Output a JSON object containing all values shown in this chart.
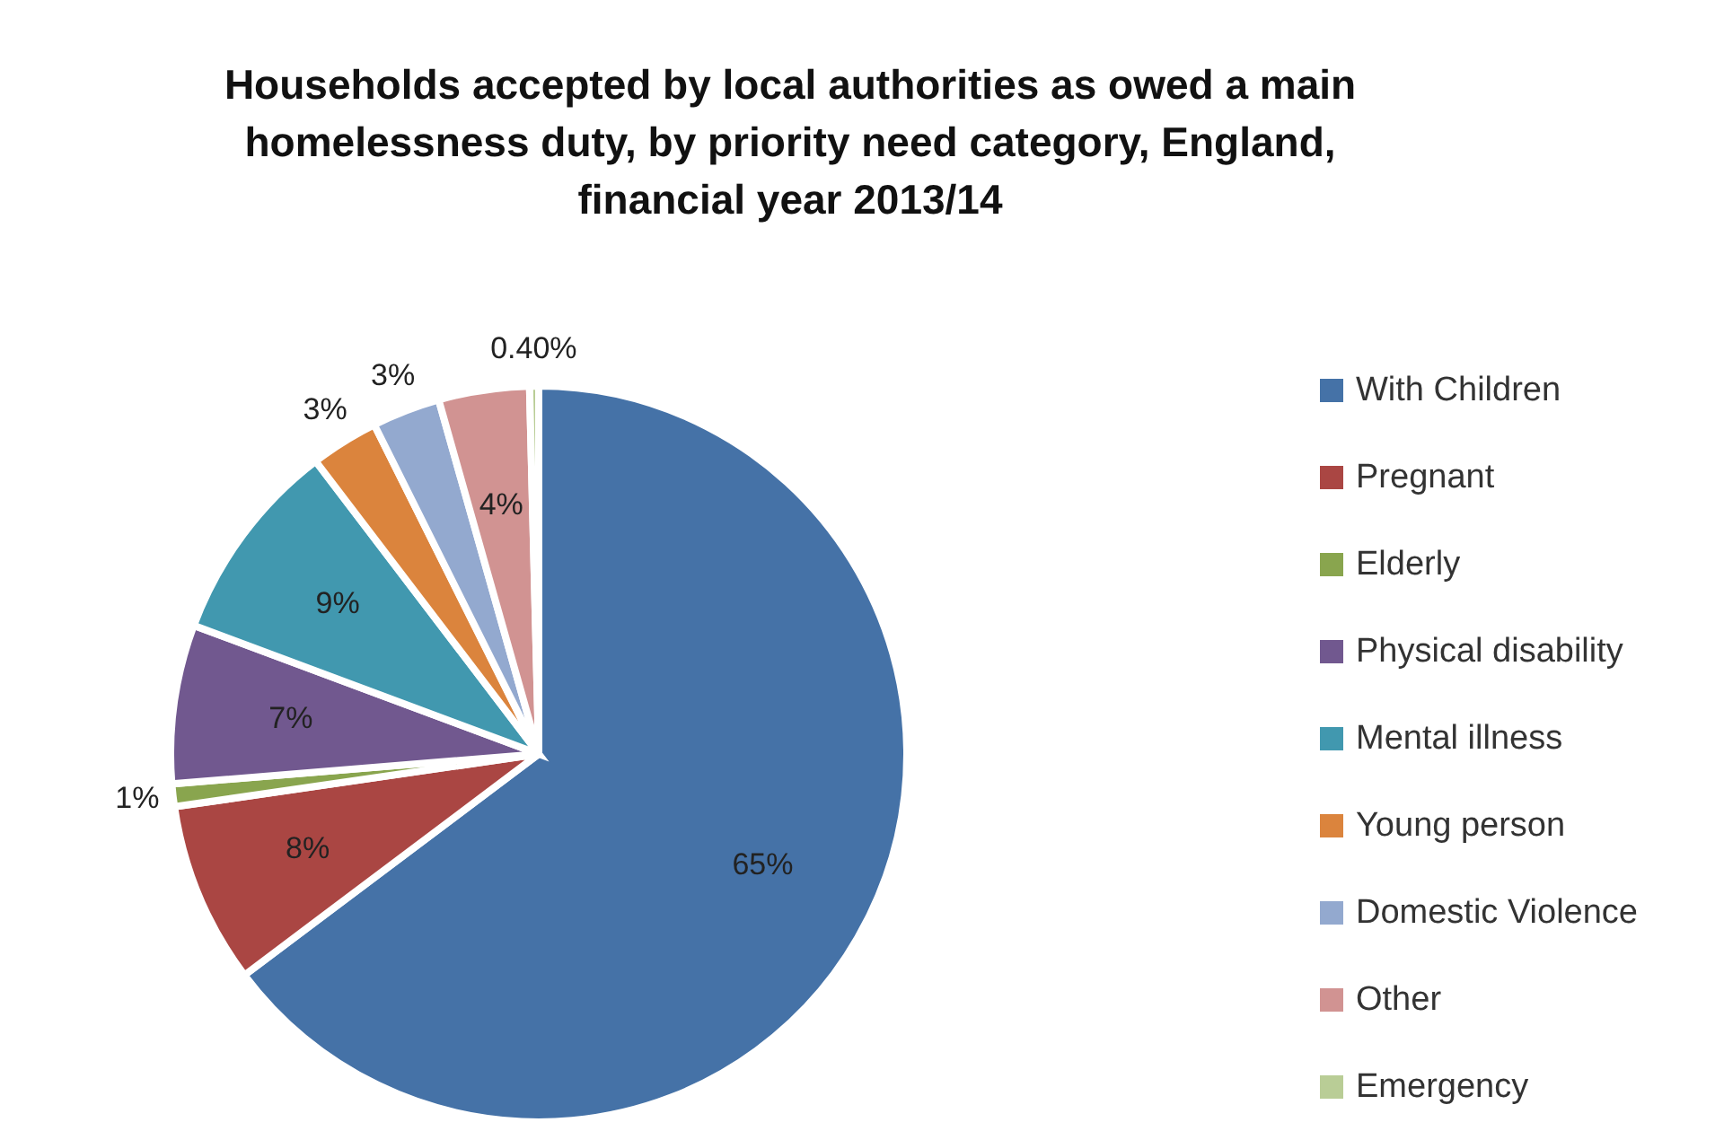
{
  "chart_data": {
    "type": "pie",
    "title": "Households accepted by local authorities as owed a main homelessness duty, by priority need category, England, financial year 2013/14",
    "categories": [
      "With Children",
      "Pregnant",
      "Elderly",
      "Physical disability",
      "Mental illness",
      "Young person",
      "Domestic Violence",
      "Other",
      "Emergency"
    ],
    "values": [
      65,
      8,
      1,
      7,
      9,
      3,
      3,
      4,
      0.4
    ],
    "value_labels": [
      "65%",
      "8%",
      "1%",
      "7%",
      "9%",
      "3%",
      "3%",
      "4%",
      "0.40%"
    ],
    "colors": [
      "#4572a7",
      "#aa4643",
      "#89a54e",
      "#71588f",
      "#4198af",
      "#db843d",
      "#93a9cf",
      "#d19392",
      "#b9cd96"
    ],
    "legend": "right"
  }
}
